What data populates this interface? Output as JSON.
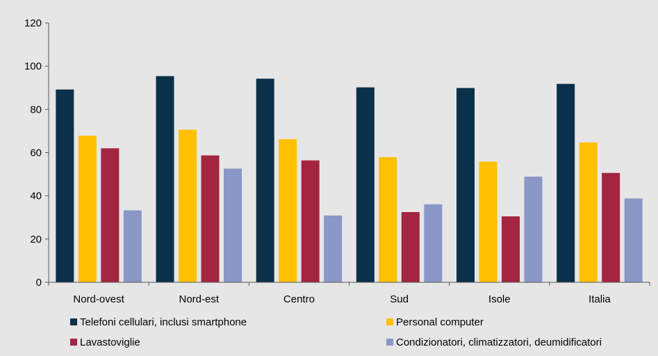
{
  "chart_data": {
    "type": "bar",
    "title": "",
    "xlabel": "",
    "ylabel": "",
    "ylim": [
      0,
      120
    ],
    "yticks": [
      0,
      20,
      40,
      60,
      80,
      100,
      120
    ],
    "grid": false,
    "legend_position": "bottom",
    "categories": [
      "Nord-ovest",
      "Nord-est",
      "Centro",
      "Sud",
      "Isole",
      "Italia"
    ],
    "series": [
      {
        "name": "Telefoni cellulari, inclusi smartphone",
        "color": "#0b3049",
        "values": [
          89.2,
          95.4,
          94.2,
          90.2,
          89.9,
          91.8
        ]
      },
      {
        "name": "Personal computer",
        "color": "#ffc000",
        "values": [
          67.8,
          70.6,
          66.2,
          57.9,
          55.8,
          64.7
        ]
      },
      {
        "name": "Lavastoviglie",
        "color": "#a3253f",
        "values": [
          62.0,
          58.7,
          56.4,
          32.5,
          30.5,
          50.6
        ]
      },
      {
        "name": "Condizionatori, climatizzatori, deumidificatori",
        "color": "#8b97c6",
        "values": [
          33.3,
          52.6,
          30.9,
          36.1,
          48.9,
          38.8
        ]
      }
    ]
  }
}
